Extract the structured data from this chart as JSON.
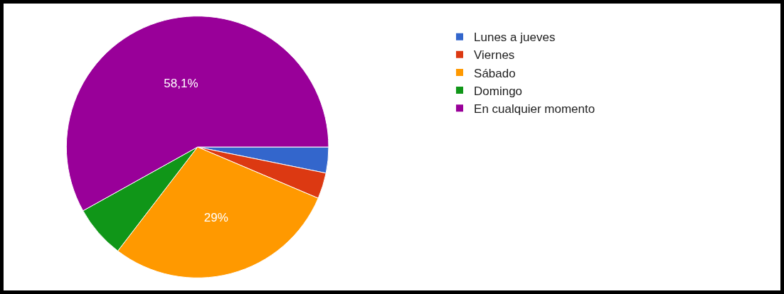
{
  "chart_data": {
    "type": "pie",
    "categories": [
      "Lunes a jueves",
      "Viernes",
      "Sábado",
      "Domingo",
      "En cualquier momento"
    ],
    "values": [
      3.2,
      3.2,
      29,
      6.5,
      58.1
    ],
    "colors": [
      "#3366cc",
      "#dc3912",
      "#ff9900",
      "#109618",
      "#990099"
    ],
    "value_labels": [
      null,
      null,
      "29%",
      null,
      "58,1%"
    ],
    "legend": "right"
  }
}
